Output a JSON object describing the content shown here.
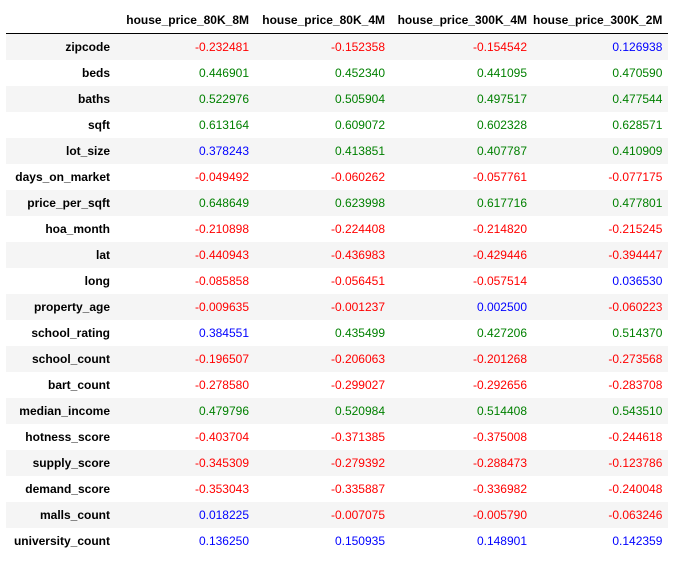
{
  "colors": {
    "negative": "#ff0000",
    "moderate": "#0000ff",
    "strong": "#008000",
    "stripe": "#f5f5f5"
  },
  "table": {
    "columns": [
      "house_price_80K_8M",
      "house_price_80K_4M",
      "house_price_300K_4M",
      "house_price_300K_2M"
    ],
    "rows": [
      {
        "label": "zipcode",
        "values": [
          "-0.232481",
          "-0.152358",
          "-0.154542",
          "0.126938"
        ]
      },
      {
        "label": "beds",
        "values": [
          "0.446901",
          "0.452340",
          "0.441095",
          "0.470590"
        ]
      },
      {
        "label": "baths",
        "values": [
          "0.522976",
          "0.505904",
          "0.497517",
          "0.477544"
        ]
      },
      {
        "label": "sqft",
        "values": [
          "0.613164",
          "0.609072",
          "0.602328",
          "0.628571"
        ]
      },
      {
        "label": "lot_size",
        "values": [
          "0.378243",
          "0.413851",
          "0.407787",
          "0.410909"
        ]
      },
      {
        "label": "days_on_market",
        "values": [
          "-0.049492",
          "-0.060262",
          "-0.057761",
          "-0.077175"
        ]
      },
      {
        "label": "price_per_sqft",
        "values": [
          "0.648649",
          "0.623998",
          "0.617716",
          "0.477801"
        ]
      },
      {
        "label": "hoa_month",
        "values": [
          "-0.210898",
          "-0.224408",
          "-0.214820",
          "-0.215245"
        ]
      },
      {
        "label": "lat",
        "values": [
          "-0.440943",
          "-0.436983",
          "-0.429446",
          "-0.394447"
        ]
      },
      {
        "label": "long",
        "values": [
          "-0.085858",
          "-0.056451",
          "-0.057514",
          "0.036530"
        ]
      },
      {
        "label": "property_age",
        "values": [
          "-0.009635",
          "-0.001237",
          "0.002500",
          "-0.060223"
        ]
      },
      {
        "label": "school_rating",
        "values": [
          "0.384551",
          "0.435499",
          "0.427206",
          "0.514370"
        ]
      },
      {
        "label": "school_count",
        "values": [
          "-0.196507",
          "-0.206063",
          "-0.201268",
          "-0.273568"
        ]
      },
      {
        "label": "bart_count",
        "values": [
          "-0.278580",
          "-0.299027",
          "-0.292656",
          "-0.283708"
        ]
      },
      {
        "label": "median_income",
        "values": [
          "0.479796",
          "0.520984",
          "0.514408",
          "0.543510"
        ]
      },
      {
        "label": "hotness_score",
        "values": [
          "-0.403704",
          "-0.371385",
          "-0.375008",
          "-0.244618"
        ]
      },
      {
        "label": "supply_score",
        "values": [
          "-0.345309",
          "-0.279392",
          "-0.288473",
          "-0.123786"
        ]
      },
      {
        "label": "demand_score",
        "values": [
          "-0.353043",
          "-0.335887",
          "-0.336982",
          "-0.240048"
        ]
      },
      {
        "label": "malls_count",
        "values": [
          "0.018225",
          "-0.007075",
          "-0.005790",
          "-0.063246"
        ]
      },
      {
        "label": "university_count",
        "values": [
          "0.136250",
          "0.150935",
          "0.148901",
          "0.142359"
        ]
      }
    ]
  }
}
